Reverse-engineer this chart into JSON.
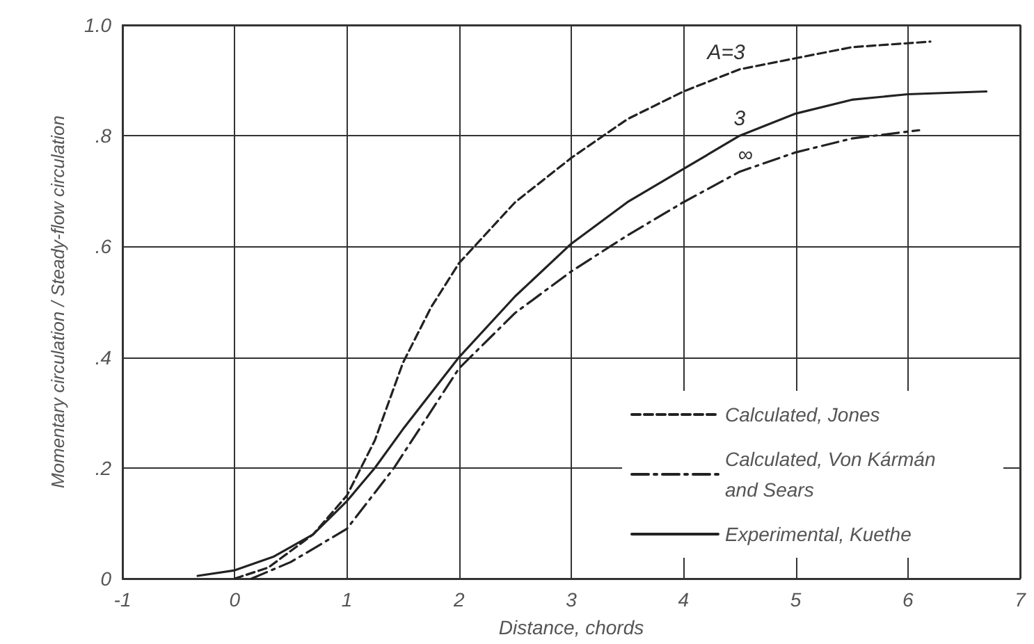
{
  "chart_data": {
    "type": "line",
    "xlabel": "Distance, chords",
    "ylabel": "Momentary circulation / Steady-flow circulation",
    "xlim": [
      -1,
      7
    ],
    "xticks": [
      -1,
      0,
      1,
      2,
      3,
      4,
      5,
      6,
      7
    ],
    "ylim": [
      0,
      1
    ],
    "yticks": [
      {
        "value": 0,
        "label": "0"
      },
      {
        "value": 0.2,
        "label": ".2"
      },
      {
        "value": 0.4,
        "label": ".4"
      },
      {
        "value": 0.6,
        "label": ".6"
      },
      {
        "value": 0.8,
        "label": ".8"
      },
      {
        "value": 1,
        "label": "1.0"
      }
    ],
    "grid": true,
    "legend": "bottom right",
    "marker": "none",
    "series": [
      {
        "name": "Calculated, Jones",
        "color": "#222222",
        "line_style": "dashed",
        "x": [
          0,
          0.3,
          0.7,
          1,
          1.25,
          1.5,
          1.75,
          2,
          2.5,
          3,
          3.5,
          4,
          4.5,
          5,
          5.5,
          6.2
        ],
        "values": [
          0,
          0.02,
          0.08,
          0.15,
          0.25,
          0.39,
          0.49,
          0.57,
          0.68,
          0.76,
          0.83,
          0.88,
          0.92,
          0.94,
          0.96,
          0.97
        ]
      },
      {
        "name": "Calculated, Von Kármán and Sears",
        "color": "#222222",
        "line_style": "dashdot",
        "x": [
          0.15,
          0.5,
          1,
          1.42,
          2,
          2.5,
          3,
          3.5,
          4,
          4.5,
          5,
          5.5,
          6.1
        ],
        "values": [
          0,
          0.03,
          0.09,
          0.2,
          0.38,
          0.48,
          0.555,
          0.62,
          0.68,
          0.735,
          0.77,
          0.795,
          0.81
        ]
      },
      {
        "name": "Experimental, Kuethe",
        "color": "#222222",
        "line_style": "solid",
        "x": [
          -0.33,
          0,
          0.35,
          0.7,
          1,
          1.25,
          1.5,
          2,
          2.5,
          3,
          3.5,
          4,
          4.5,
          5,
          5.5,
          6,
          6.7
        ],
        "values": [
          0.005,
          0.015,
          0.04,
          0.08,
          0.14,
          0.2,
          0.27,
          0.4,
          0.51,
          0.605,
          0.68,
          0.74,
          0.8,
          0.84,
          0.865,
          0.875,
          0.88
        ]
      }
    ],
    "annotations": [
      "A=3",
      "3",
      "∞"
    ]
  }
}
